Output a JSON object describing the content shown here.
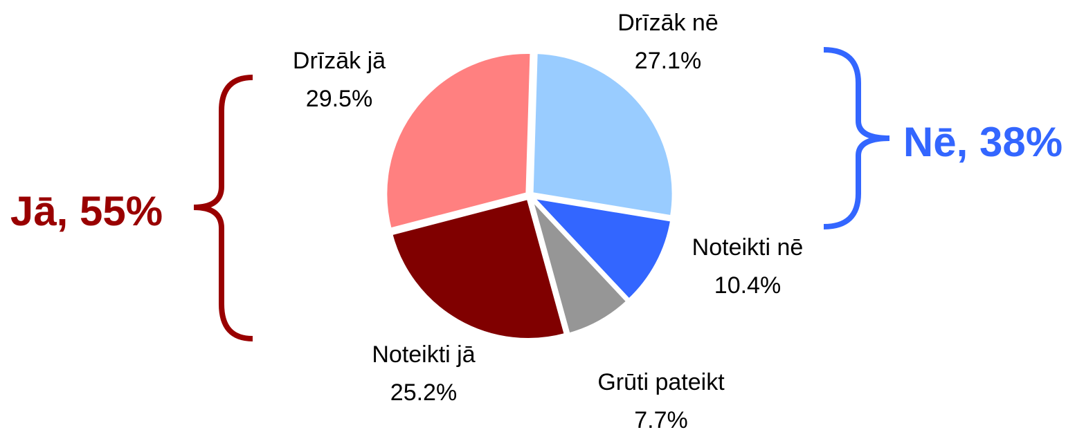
{
  "chart_data": {
    "type": "pie",
    "categories": [
      "Drīzāk nē",
      "Noteikti nē",
      "Grūti pateikt",
      "Noteikti jā",
      "Drīzāk jā"
    ],
    "values": [
      27.1,
      10.4,
      7.7,
      25.2,
      29.5
    ],
    "value_labels": [
      "27.1%",
      "10.4%",
      "7.7%",
      "25.2%",
      "29.5%"
    ],
    "colors": [
      "#99ccff",
      "#3366ff",
      "#969696",
      "#800000",
      "#ff8080"
    ],
    "annotations": [
      {
        "text": "Jā, 55%",
        "color": "#990000"
      },
      {
        "text": "Nē, 38%",
        "color": "#3366ff"
      }
    ]
  }
}
